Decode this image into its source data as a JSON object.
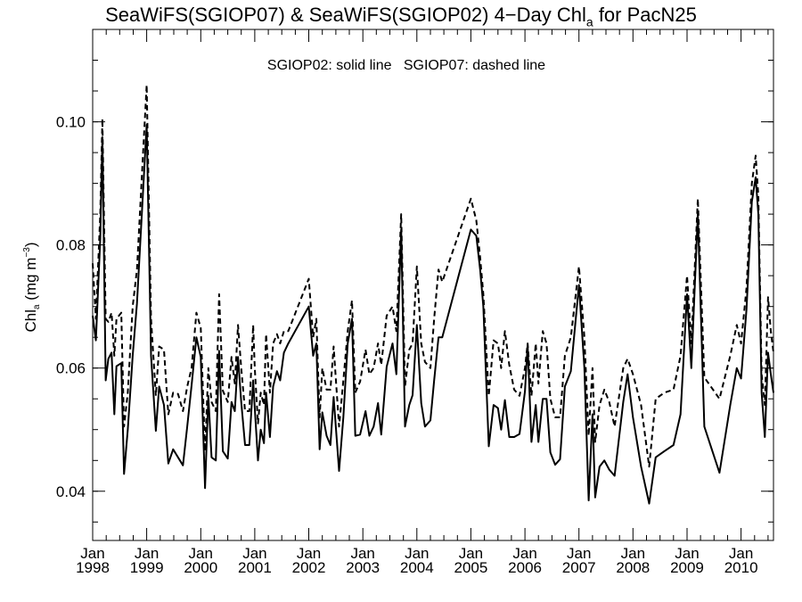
{
  "chart_data": {
    "type": "line",
    "title": {
      "prefix": "SeaWiFS(SGIOP07) & SeaWiFS(SGIOP02) 4−Day Chl",
      "subscript": "a",
      "suffix": " for PacN25"
    },
    "annotation": "SGIOP02: solid line   SGIOP07: dashed line",
    "ylabel": {
      "main": "Chl",
      "sub": "a",
      "unit_open": " (mg m",
      "unit_sup": "−3",
      "unit_close": ")"
    },
    "xlim": [
      1998.0,
      2010.6
    ],
    "ylim": [
      0.032,
      0.115
    ],
    "y_ticks": [
      0.04,
      0.06,
      0.08,
      0.1
    ],
    "y_tick_labels": [
      "0.04",
      "0.06",
      "0.08",
      "0.10"
    ],
    "y_minor_step": 0.005,
    "x_ticks": [
      1998,
      1999,
      2000,
      2001,
      2002,
      2003,
      2004,
      2005,
      2006,
      2007,
      2008,
      2009,
      2010
    ],
    "x_tick_month": "Jan",
    "x_tick_years": [
      "1998",
      "1999",
      "2000",
      "2001",
      "2002",
      "2003",
      "2004",
      "2005",
      "2006",
      "2007",
      "2008",
      "2009",
      "2010"
    ],
    "grid": false,
    "series": [
      {
        "name": "SGIOP02",
        "style": "solid",
        "points": [
          [
            1998.0,
            0.0685
          ],
          [
            1998.06,
            0.0645
          ],
          [
            1998.14,
            0.081
          ],
          [
            1998.18,
            0.0975
          ],
          [
            1998.24,
            0.058
          ],
          [
            1998.29,
            0.0615
          ],
          [
            1998.35,
            0.0625
          ],
          [
            1998.4,
            0.0525
          ],
          [
            1998.44,
            0.0603
          ],
          [
            1998.53,
            0.0608
          ],
          [
            1998.58,
            0.0428
          ],
          [
            1998.65,
            0.05
          ],
          [
            1998.74,
            0.062
          ],
          [
            1998.82,
            0.0705
          ],
          [
            1999.0,
            0.0995
          ],
          [
            1999.08,
            0.062
          ],
          [
            1999.17,
            0.0498
          ],
          [
            1999.23,
            0.057
          ],
          [
            1999.32,
            0.054
          ],
          [
            1999.4,
            0.0445
          ],
          [
            1999.49,
            0.0468
          ],
          [
            1999.58,
            0.0455
          ],
          [
            1999.67,
            0.0442
          ],
          [
            1999.75,
            0.0505
          ],
          [
            1999.83,
            0.0572
          ],
          [
            1999.92,
            0.065
          ],
          [
            2000.0,
            0.0618
          ],
          [
            2000.08,
            0.0405
          ],
          [
            2000.14,
            0.0555
          ],
          [
            2000.2,
            0.0455
          ],
          [
            2000.28,
            0.045
          ],
          [
            2000.34,
            0.0628
          ],
          [
            2000.41,
            0.0465
          ],
          [
            2000.5,
            0.0453
          ],
          [
            2000.57,
            0.0545
          ],
          [
            2000.63,
            0.053
          ],
          [
            2000.69,
            0.0618
          ],
          [
            2000.75,
            0.0545
          ],
          [
            2000.82,
            0.0475
          ],
          [
            2000.9,
            0.0475
          ],
          [
            2000.97,
            0.058
          ],
          [
            2001.0,
            0.0535
          ],
          [
            2001.06,
            0.045
          ],
          [
            2001.11,
            0.05
          ],
          [
            2001.17,
            0.0478
          ],
          [
            2001.21,
            0.056
          ],
          [
            2001.28,
            0.0488
          ],
          [
            2001.34,
            0.057
          ],
          [
            2001.41,
            0.0595
          ],
          [
            2001.47,
            0.058
          ],
          [
            2001.54,
            0.0625
          ],
          [
            2001.62,
            0.064
          ],
          [
            2002.0,
            0.07
          ],
          [
            2002.08,
            0.062
          ],
          [
            2002.14,
            0.064
          ],
          [
            2002.2,
            0.0468
          ],
          [
            2002.25,
            0.0528
          ],
          [
            2002.33,
            0.049
          ],
          [
            2002.4,
            0.0475
          ],
          [
            2002.46,
            0.0553
          ],
          [
            2002.56,
            0.0433
          ],
          [
            2002.64,
            0.052
          ],
          [
            2002.72,
            0.064
          ],
          [
            2002.8,
            0.068
          ],
          [
            2002.86,
            0.049
          ],
          [
            2002.95,
            0.0492
          ],
          [
            2003.05,
            0.053
          ],
          [
            2003.12,
            0.049
          ],
          [
            2003.2,
            0.0505
          ],
          [
            2003.28,
            0.0543
          ],
          [
            2003.34,
            0.0492
          ],
          [
            2003.44,
            0.0602
          ],
          [
            2003.55,
            0.064
          ],
          [
            2003.62,
            0.059
          ],
          [
            2003.71,
            0.0825
          ],
          [
            2003.78,
            0.0505
          ],
          [
            2003.86,
            0.054
          ],
          [
            2003.92,
            0.0556
          ],
          [
            2004.0,
            0.067
          ],
          [
            2004.08,
            0.0543
          ],
          [
            2004.15,
            0.0505
          ],
          [
            2004.25,
            0.0515
          ],
          [
            2004.32,
            0.058
          ],
          [
            2004.4,
            0.065
          ],
          [
            2004.47,
            0.065
          ],
          [
            2005.0,
            0.0825
          ],
          [
            2005.1,
            0.0815
          ],
          [
            2005.17,
            0.076
          ],
          [
            2005.23,
            0.07
          ],
          [
            2005.33,
            0.0473
          ],
          [
            2005.42,
            0.054
          ],
          [
            2005.5,
            0.0535
          ],
          [
            2005.56,
            0.05
          ],
          [
            2005.63,
            0.0548
          ],
          [
            2005.71,
            0.0488
          ],
          [
            2005.8,
            0.0488
          ],
          [
            2005.9,
            0.0493
          ],
          [
            2006.0,
            0.0562
          ],
          [
            2006.05,
            0.0638
          ],
          [
            2006.12,
            0.048
          ],
          [
            2006.2,
            0.054
          ],
          [
            2006.25,
            0.048
          ],
          [
            2006.33,
            0.055
          ],
          [
            2006.4,
            0.055
          ],
          [
            2006.47,
            0.0463
          ],
          [
            2006.56,
            0.0443
          ],
          [
            2006.65,
            0.0452
          ],
          [
            2006.74,
            0.057
          ],
          [
            2006.85,
            0.0595
          ],
          [
            2007.0,
            0.0735
          ],
          [
            2007.1,
            0.06
          ],
          [
            2007.18,
            0.0385
          ],
          [
            2007.25,
            0.0525
          ],
          [
            2007.3,
            0.039
          ],
          [
            2007.38,
            0.044
          ],
          [
            2007.47,
            0.045
          ],
          [
            2007.56,
            0.0435
          ],
          [
            2007.66,
            0.0425
          ],
          [
            2007.82,
            0.0545
          ],
          [
            2007.9,
            0.059
          ],
          [
            2008.0,
            0.052
          ],
          [
            2008.15,
            0.044
          ],
          [
            2008.3,
            0.038
          ],
          [
            2008.42,
            0.0455
          ],
          [
            2008.58,
            0.0465
          ],
          [
            2008.75,
            0.0475
          ],
          [
            2008.88,
            0.0525
          ],
          [
            2009.0,
            0.072
          ],
          [
            2009.08,
            0.06
          ],
          [
            2009.2,
            0.085
          ],
          [
            2009.32,
            0.0505
          ],
          [
            2009.6,
            0.043
          ],
          [
            2009.8,
            0.054
          ],
          [
            2009.92,
            0.06
          ],
          [
            2010.0,
            0.0583
          ],
          [
            2010.1,
            0.0695
          ],
          [
            2010.2,
            0.087
          ],
          [
            2010.27,
            0.091
          ],
          [
            2010.32,
            0.085
          ],
          [
            2010.38,
            0.056
          ],
          [
            2010.44,
            0.0488
          ],
          [
            2010.5,
            0.0625
          ],
          [
            2010.55,
            0.059
          ],
          [
            2010.6,
            0.056
          ]
        ]
      },
      {
        "name": "SGIOP07",
        "style": "dashed",
        "points": [
          [
            1998.0,
            0.077
          ],
          [
            1998.06,
            0.068
          ],
          [
            1998.14,
            0.085
          ],
          [
            1998.18,
            0.1005
          ],
          [
            1998.24,
            0.068
          ],
          [
            1998.29,
            0.0675
          ],
          [
            1998.35,
            0.069
          ],
          [
            1998.4,
            0.062
          ],
          [
            1998.44,
            0.068
          ],
          [
            1998.53,
            0.069
          ],
          [
            1998.58,
            0.0505
          ],
          [
            1998.65,
            0.056
          ],
          [
            1998.74,
            0.07
          ],
          [
            1998.82,
            0.076
          ],
          [
            1999.0,
            0.106
          ],
          [
            1999.08,
            0.068
          ],
          [
            1999.17,
            0.0555
          ],
          [
            1999.23,
            0.0635
          ],
          [
            1999.32,
            0.063
          ],
          [
            1999.4,
            0.0525
          ],
          [
            1999.49,
            0.056
          ],
          [
            1999.58,
            0.0558
          ],
          [
            1999.67,
            0.053
          ],
          [
            1999.75,
            0.057
          ],
          [
            1999.83,
            0.06
          ],
          [
            1999.92,
            0.069
          ],
          [
            2000.0,
            0.0665
          ],
          [
            2000.08,
            0.0465
          ],
          [
            2000.14,
            0.06
          ],
          [
            2000.2,
            0.0545
          ],
          [
            2000.28,
            0.053
          ],
          [
            2000.34,
            0.072
          ],
          [
            2000.41,
            0.0563
          ],
          [
            2000.5,
            0.0545
          ],
          [
            2000.57,
            0.0618
          ],
          [
            2000.63,
            0.0575
          ],
          [
            2000.69,
            0.067
          ],
          [
            2000.75,
            0.06
          ],
          [
            2000.82,
            0.053
          ],
          [
            2000.9,
            0.053
          ],
          [
            2000.97,
            0.067
          ],
          [
            2001.0,
            0.06
          ],
          [
            2001.06,
            0.051
          ],
          [
            2001.11,
            0.056
          ],
          [
            2001.17,
            0.054
          ],
          [
            2001.21,
            0.0655
          ],
          [
            2001.28,
            0.056
          ],
          [
            2001.34,
            0.064
          ],
          [
            2001.41,
            0.0655
          ],
          [
            2001.47,
            0.064
          ],
          [
            2001.54,
            0.066
          ],
          [
            2001.62,
            0.066
          ],
          [
            2002.0,
            0.0745
          ],
          [
            2002.08,
            0.065
          ],
          [
            2002.14,
            0.068
          ],
          [
            2002.2,
            0.052
          ],
          [
            2002.25,
            0.06
          ],
          [
            2002.33,
            0.0565
          ],
          [
            2002.4,
            0.0565
          ],
          [
            2002.46,
            0.0635
          ],
          [
            2002.56,
            0.0505
          ],
          [
            2002.64,
            0.058
          ],
          [
            2002.72,
            0.066
          ],
          [
            2002.8,
            0.071
          ],
          [
            2002.86,
            0.056
          ],
          [
            2002.95,
            0.0578
          ],
          [
            2003.05,
            0.063
          ],
          [
            2003.12,
            0.059
          ],
          [
            2003.2,
            0.06
          ],
          [
            2003.28,
            0.064
          ],
          [
            2003.34,
            0.0605
          ],
          [
            2003.44,
            0.0685
          ],
          [
            2003.55,
            0.07
          ],
          [
            2003.62,
            0.066
          ],
          [
            2003.71,
            0.085
          ],
          [
            2003.78,
            0.057
          ],
          [
            2003.86,
            0.063
          ],
          [
            2003.92,
            0.064
          ],
          [
            2004.0,
            0.0765
          ],
          [
            2004.08,
            0.064
          ],
          [
            2004.15,
            0.061
          ],
          [
            2004.25,
            0.06
          ],
          [
            2004.32,
            0.068
          ],
          [
            2004.4,
            0.076
          ],
          [
            2004.47,
            0.074
          ],
          [
            2005.0,
            0.0875
          ],
          [
            2005.1,
            0.084
          ],
          [
            2005.17,
            0.078
          ],
          [
            2005.23,
            0.072
          ],
          [
            2005.33,
            0.0555
          ],
          [
            2005.42,
            0.0645
          ],
          [
            2005.5,
            0.064
          ],
          [
            2005.56,
            0.06
          ],
          [
            2005.63,
            0.066
          ],
          [
            2005.71,
            0.0605
          ],
          [
            2005.8,
            0.0565
          ],
          [
            2005.9,
            0.0555
          ],
          [
            2006.0,
            0.06
          ],
          [
            2006.05,
            0.064
          ],
          [
            2006.12,
            0.0555
          ],
          [
            2006.2,
            0.064
          ],
          [
            2006.25,
            0.0575
          ],
          [
            2006.33,
            0.066
          ],
          [
            2006.4,
            0.064
          ],
          [
            2006.47,
            0.055
          ],
          [
            2006.56,
            0.052
          ],
          [
            2006.65,
            0.052
          ],
          [
            2006.74,
            0.062
          ],
          [
            2006.85,
            0.065
          ],
          [
            2007.0,
            0.0765
          ],
          [
            2007.1,
            0.065
          ],
          [
            2007.18,
            0.049
          ],
          [
            2007.25,
            0.06
          ],
          [
            2007.3,
            0.048
          ],
          [
            2007.38,
            0.054
          ],
          [
            2007.47,
            0.0565
          ],
          [
            2007.56,
            0.0545
          ],
          [
            2007.66,
            0.0505
          ],
          [
            2007.82,
            0.06
          ],
          [
            2007.9,
            0.0615
          ],
          [
            2008.0,
            0.059
          ],
          [
            2008.15,
            0.054
          ],
          [
            2008.3,
            0.044
          ],
          [
            2008.42,
            0.055
          ],
          [
            2008.58,
            0.056
          ],
          [
            2008.75,
            0.0565
          ],
          [
            2008.88,
            0.062
          ],
          [
            2009.0,
            0.075
          ],
          [
            2009.08,
            0.064
          ],
          [
            2009.2,
            0.0875
          ],
          [
            2009.32,
            0.0585
          ],
          [
            2009.6,
            0.055
          ],
          [
            2009.8,
            0.062
          ],
          [
            2009.92,
            0.067
          ],
          [
            2010.0,
            0.064
          ],
          [
            2010.1,
            0.073
          ],
          [
            2010.2,
            0.09
          ],
          [
            2010.27,
            0.0945
          ],
          [
            2010.32,
            0.088
          ],
          [
            2010.38,
            0.059
          ],
          [
            2010.44,
            0.054
          ],
          [
            2010.5,
            0.0715
          ],
          [
            2010.55,
            0.066
          ],
          [
            2010.6,
            0.0625
          ]
        ]
      }
    ]
  }
}
